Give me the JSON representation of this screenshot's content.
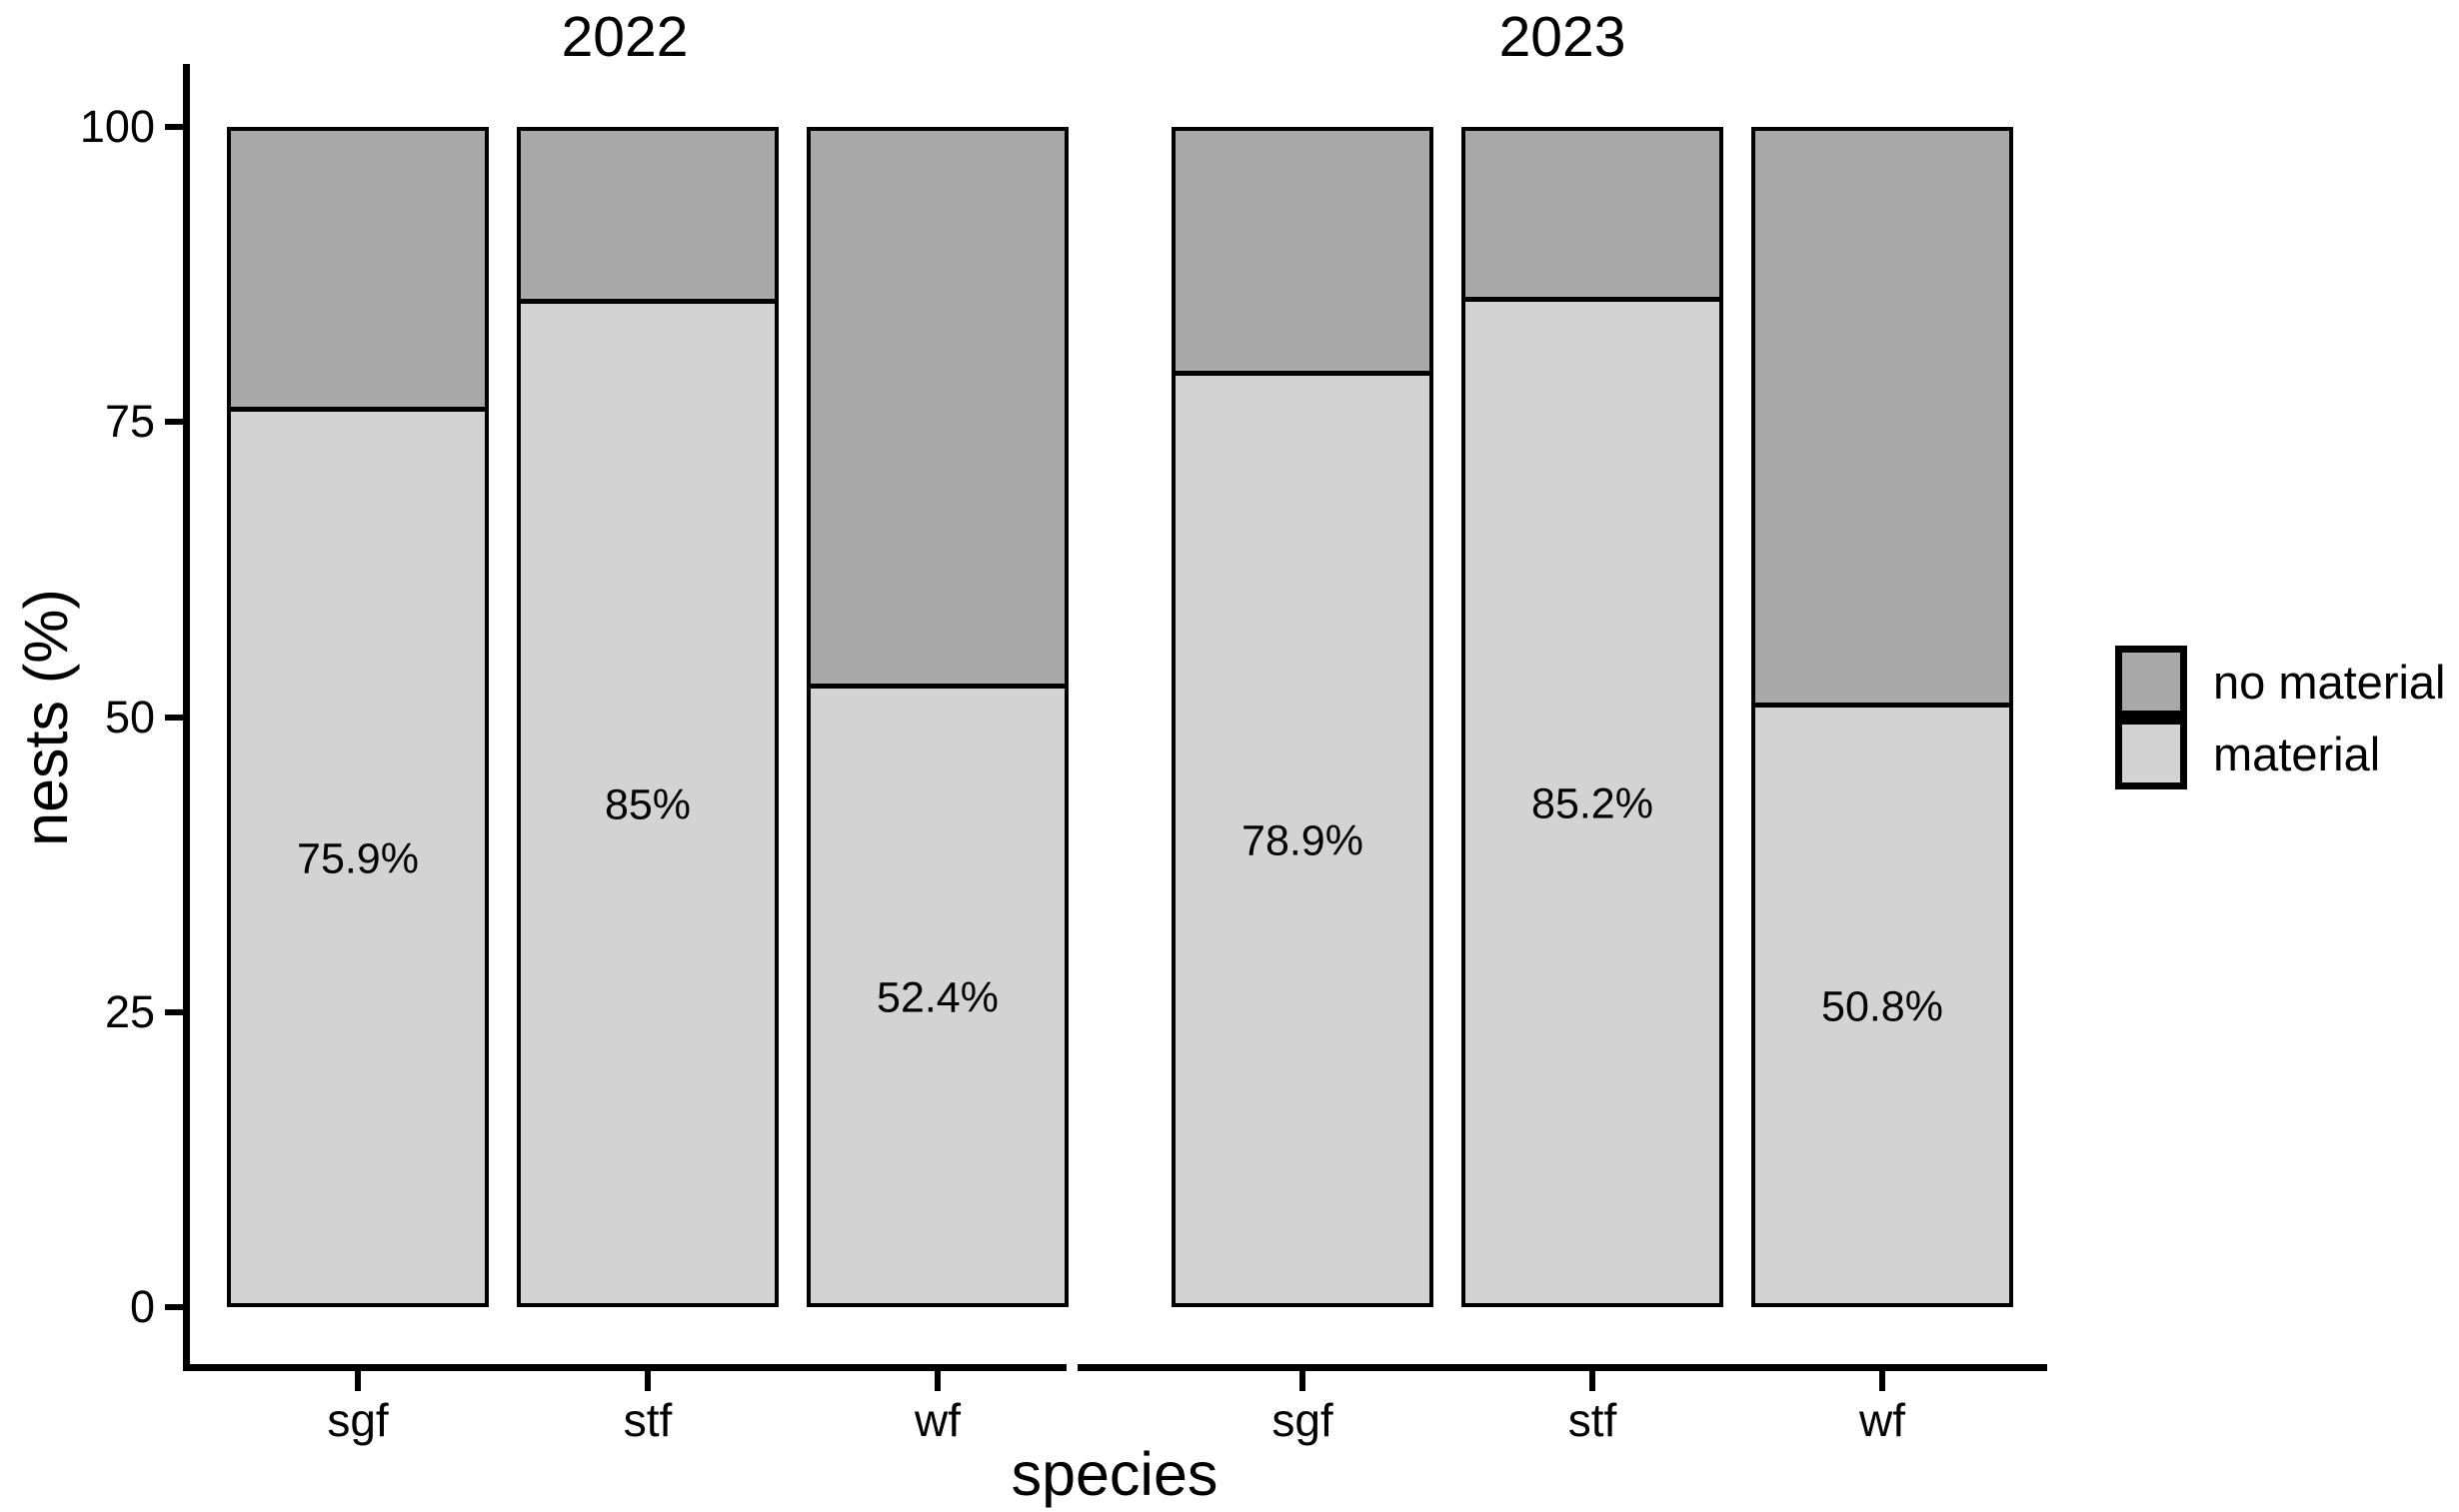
{
  "chart_data": {
    "type": "bar",
    "stacked": true,
    "orientation": "vertical",
    "facets": [
      {
        "title": "2022",
        "categories": [
          "sgf",
          "stf",
          "wf"
        ],
        "series": [
          {
            "name": "material",
            "values": [
              75.9,
              85,
              52.4
            ]
          },
          {
            "name": "no material",
            "values": [
              24.1,
              15,
              47.6
            ]
          }
        ],
        "bar_labels": [
          "75.9%",
          "85%",
          "52.4%"
        ]
      },
      {
        "title": "2023",
        "categories": [
          "sgf",
          "stf",
          "wf"
        ],
        "series": [
          {
            "name": "material",
            "values": [
              78.9,
              85.2,
              50.8
            ]
          },
          {
            "name": "no material",
            "values": [
              21.1,
              14.8,
              49.2
            ]
          }
        ],
        "bar_labels": [
          "78.9%",
          "85.2%",
          "50.8%"
        ]
      }
    ],
    "title": "",
    "xlabel": "species",
    "ylabel": "nests (%)",
    "ylim": [
      0,
      100
    ],
    "yticks": [
      0,
      25,
      50,
      75,
      100
    ],
    "grid": false,
    "legend": {
      "position": "right",
      "entries": [
        {
          "label": "no material",
          "color": "#a9a9a9"
        },
        {
          "label": "material",
          "color": "#d3d3d3"
        }
      ]
    },
    "colors": {
      "material": "#d3d3d3",
      "no_material": "#a9a9a9",
      "stroke": "#000000",
      "text": "#000000",
      "background": "#ffffff"
    }
  }
}
